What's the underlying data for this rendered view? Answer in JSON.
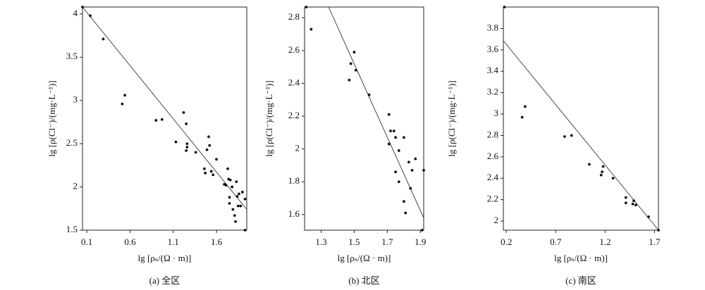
{
  "chart_data": [
    {
      "type": "scatter",
      "title": "(a) 全区",
      "x_label": "lg [ρₛ/(Ω · m)]",
      "y_label": "lg [ρ(Cl⁻)/(mg·L⁻¹)]",
      "xlim": [
        0.05,
        1.95
      ],
      "ylim": [
        1.5,
        4.08
      ],
      "xticks": [
        0.1,
        0.6,
        1.1,
        1.6
      ],
      "yticks": [
        1.5,
        2,
        2.5,
        3,
        3.5,
        4
      ],
      "color": "#111111",
      "x": [
        0.05,
        0.14,
        0.29,
        0.51,
        0.54,
        0.9,
        0.97,
        1.13,
        1.22,
        1.25,
        1.25,
        1.26,
        1.26,
        1.36,
        1.46,
        1.47,
        1.49,
        1.51,
        1.52,
        1.56,
        1.54,
        1.6,
        1.69,
        1.71,
        1.73,
        1.74,
        1.75,
        1.75,
        1.76,
        1.78,
        1.79,
        1.81,
        1.82,
        1.83,
        1.84,
        1.85,
        1.86,
        1.88,
        1.9,
        1.93,
        1.93
      ],
      "values": [
        4.08,
        3.98,
        3.71,
        2.96,
        3.06,
        2.77,
        2.78,
        2.52,
        2.86,
        2.73,
        2.42,
        2.46,
        2.5,
        2.4,
        2.21,
        2.16,
        2.43,
        2.58,
        2.48,
        2.14,
        2.18,
        2.32,
        2.03,
        2.02,
        2.21,
        2.09,
        1.88,
        1.81,
        2.08,
        2.0,
        1.74,
        1.67,
        1.6,
        2.06,
        1.89,
        1.78,
        1.92,
        1.78,
        1.94,
        1.86,
        1.5
      ],
      "fit_line": {
        "x": [
          0.05,
          1.95
        ],
        "y": [
          4.08,
          1.74
        ]
      }
    },
    {
      "type": "scatter",
      "title": "(b) 北区",
      "x_label": "lg [ρₛ/(Ω · m)]",
      "y_label": "lg [ρ(Cl⁻)/(mg·L⁻¹)]",
      "xlim": [
        1.2,
        1.92
      ],
      "ylim": [
        1.505,
        2.865
      ],
      "xticks": [
        1.3,
        1.5,
        1.7,
        1.9
      ],
      "yticks": [
        1.6,
        1.8,
        2,
        2.2,
        2.4,
        2.6,
        2.8
      ],
      "color": "#111111",
      "x": [
        1.21,
        1.24,
        1.47,
        1.48,
        1.5,
        1.51,
        1.59,
        1.71,
        1.71,
        1.72,
        1.74,
        1.75,
        1.75,
        1.77,
        1.77,
        1.8,
        1.8,
        1.81,
        1.83,
        1.84,
        1.85,
        1.87,
        1.91,
        1.92
      ],
      "values": [
        2.865,
        2.73,
        2.42,
        2.52,
        2.59,
        2.48,
        2.33,
        2.21,
        2.03,
        2.11,
        2.11,
        2.07,
        1.86,
        1.99,
        1.8,
        2.07,
        1.68,
        1.61,
        1.92,
        1.76,
        1.87,
        1.94,
        1.505,
        1.87
      ],
      "fit_line": {
        "x": [
          1.345,
          1.92
        ],
        "y": [
          2.865,
          1.58
        ]
      }
    },
    {
      "type": "scatter",
      "title": "(c) 南区",
      "x_label": "lg [ρₛ/(Ω · m)]",
      "y_label": "lg [ρ(Cl⁻)/(mg·L⁻¹)]",
      "xlim": [
        0.17,
        1.74
      ],
      "ylim": [
        1.915,
        4.0
      ],
      "xticks": [
        0.2,
        0.7,
        1.2,
        1.7
      ],
      "yticks": [
        2,
        2.2,
        2.4,
        2.6,
        2.8,
        3,
        3.2,
        3.4,
        3.6,
        3.8
      ],
      "color": "#111111",
      "x": [
        0.18,
        0.36,
        0.39,
        0.79,
        0.86,
        1.04,
        1.16,
        1.17,
        1.18,
        1.28,
        1.41,
        1.41,
        1.48,
        1.49,
        1.51,
        1.64,
        1.74
      ],
      "values": [
        4.0,
        2.97,
        3.07,
        2.79,
        2.8,
        2.53,
        2.43,
        2.46,
        2.51,
        2.4,
        2.22,
        2.17,
        2.16,
        2.19,
        2.15,
        2.04,
        1.915
      ],
      "fit_line": {
        "x": [
          0.17,
          1.74
        ],
        "y": [
          3.685,
          1.915
        ]
      }
    }
  ]
}
